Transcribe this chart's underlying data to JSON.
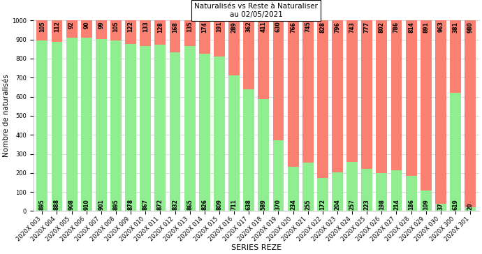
{
  "categories": [
    "2020X 003",
    "2020X 004",
    "2020X 005",
    "2020X 006",
    "2020X 007",
    "2020X 008",
    "2020X 009",
    "2020X 010",
    "2020X 011",
    "2020X 012",
    "2020X 013",
    "2020X 014",
    "2020X 015",
    "2020X 016",
    "2020X 017",
    "2020X 018",
    "2020X 019",
    "2020X 020",
    "2020X 021",
    "2020X 022",
    "2020X 023",
    "2020X 024",
    "2020X 025",
    "2020X 026",
    "2020X 027",
    "2020X 028",
    "2020X 029",
    "2020X 030",
    "2020X 300",
    "2020X 301"
  ],
  "naturalized": [
    895,
    888,
    908,
    910,
    901,
    895,
    878,
    867,
    872,
    832,
    865,
    826,
    809,
    711,
    638,
    589,
    370,
    234,
    255,
    172,
    204,
    257,
    223,
    198,
    214,
    186,
    109,
    37,
    619,
    20
  ],
  "reste": [
    105,
    112,
    92,
    90,
    99,
    105,
    122,
    133,
    128,
    168,
    135,
    174,
    191,
    289,
    362,
    411,
    630,
    766,
    745,
    828,
    796,
    743,
    777,
    802,
    786,
    814,
    891,
    963,
    381,
    980
  ],
  "green_color": "#90EE90",
  "red_color": "#FA8072",
  "title_line1": "Naturalisés vs Reste à Naturaliser",
  "title_line2": "au 02/05/2021",
  "xlabel": "SERIES REZE",
  "ylabel": "Nombre de naturalisés",
  "ylim": [
    0,
    1000
  ],
  "yticks": [
    0,
    100,
    200,
    300,
    400,
    500,
    600,
    700,
    800,
    900,
    1000
  ],
  "bg_color": "#ffffff",
  "grid_color": "#cccccc",
  "bar_width": 0.75,
  "label_fontsize": 5.5,
  "tick_fontsize": 6.0,
  "ylabel_fontsize": 7.5,
  "xlabel_fontsize": 8.0,
  "title_fontsize": 7.5
}
